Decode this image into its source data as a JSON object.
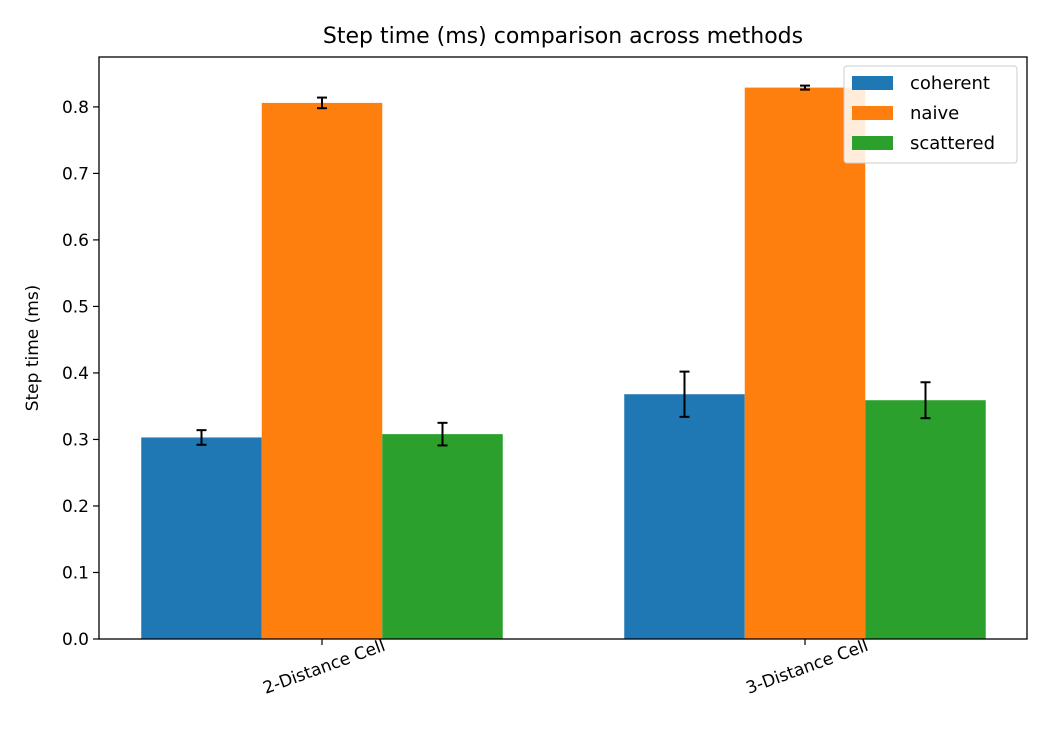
{
  "chart_data": {
    "type": "bar",
    "title": "Step time (ms) comparison across methods",
    "xlabel": "",
    "ylabel": "Step time (ms)",
    "categories": [
      "2-Distance Cell",
      "3-Distance Cell"
    ],
    "series": [
      {
        "name": "coherent",
        "color": "#1f77b4",
        "values": [
          0.303,
          0.368
        ],
        "errors": [
          0.011,
          0.034
        ]
      },
      {
        "name": "naive",
        "color": "#ff7f0e",
        "values": [
          0.806,
          0.829
        ],
        "errors": [
          0.008,
          0.003
        ]
      },
      {
        "name": "scattered",
        "color": "#2ca02c",
        "values": [
          0.308,
          0.359
        ],
        "errors": [
          0.017,
          0.027
        ]
      }
    ],
    "ylim": [
      0.0,
      0.875
    ],
    "yticks": [
      "0.0",
      "0.1",
      "0.2",
      "0.3",
      "0.4",
      "0.5",
      "0.6",
      "0.7",
      "0.8"
    ],
    "xtick_rotation_deg": -20,
    "grid": false,
    "legend": "top-right"
  }
}
